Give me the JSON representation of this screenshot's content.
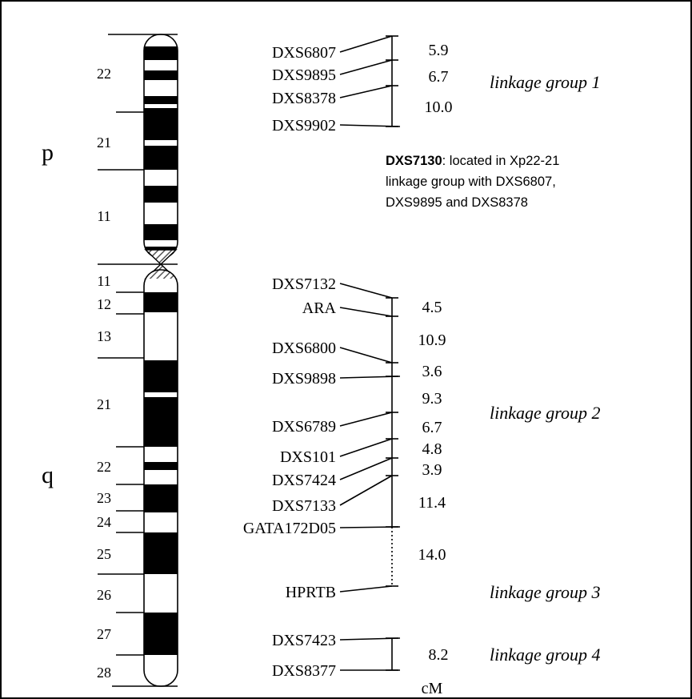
{
  "arms": [
    "p",
    "q"
  ],
  "band_labels": [
    "22",
    "21",
    "11",
    "11",
    "12",
    "13",
    "21",
    "22",
    "23",
    "24",
    "25",
    "26",
    "27",
    "28"
  ],
  "markers": [
    "DXS6807",
    "DXS9895",
    "DXS8378",
    "DXS9902",
    "DXS7132",
    "ARA",
    "DXS6800",
    "DXS9898",
    "DXS6789",
    "DXS101",
    "DXS7424",
    "DXS7133",
    "GATA172D05",
    "HPRTB",
    "DXS7423",
    "DXS8377"
  ],
  "distances": [
    "5.9",
    "6.7",
    "10.0",
    "4.5",
    "10.9",
    "3.6",
    "9.3",
    "6.7",
    "4.8",
    "3.9",
    "11.4",
    "14.0",
    "8.2"
  ],
  "linkage_groups": [
    "linkage group 1",
    "linkage group 2",
    "linkage group 3",
    "linkage group 4"
  ],
  "note": {
    "marker": "DXS7130",
    "text": ": located in Xp22-21",
    "line2": "linkage group with DXS6807,",
    "line3": "DXS9895 and DXS8378"
  },
  "unit": "cM"
}
